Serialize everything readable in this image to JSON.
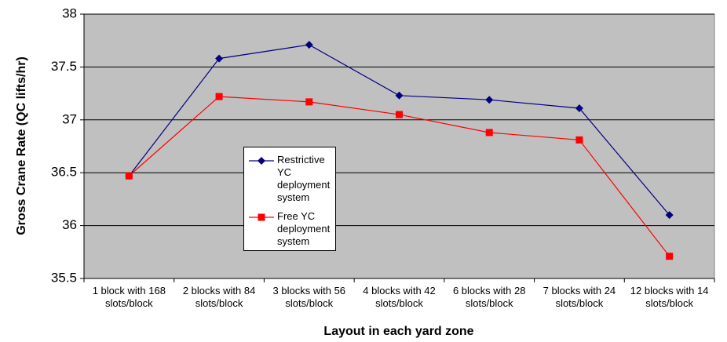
{
  "chart_data": {
    "type": "line",
    "xlabel": "Layout in each yard zone",
    "ylabel": "Gross Crane Rate (QC lifts/hr)",
    "categories": [
      "1 block with 168 slots/block",
      "2 blocks with 84 slots/block",
      "3 blocks with 56 slots/block",
      "4 blocks with 42 slots/block",
      "6 blocks with 28 slots/block",
      "7 blocks with 24 slots/block",
      "12 blocks with 14 slots/block"
    ],
    "series": [
      {
        "name": "Restrictive YC deployment system",
        "color": "#000080",
        "marker": "diamond",
        "values": [
          36.47,
          37.58,
          37.71,
          37.23,
          37.19,
          37.11,
          36.1
        ]
      },
      {
        "name": "Free YC deployment system",
        "color": "#ff0000",
        "marker": "square",
        "values": [
          36.47,
          37.22,
          37.17,
          37.05,
          36.88,
          36.81,
          35.71
        ]
      }
    ],
    "ylim": [
      35.5,
      38
    ],
    "yticks": [
      35.5,
      36,
      36.5,
      37,
      37.5,
      38
    ],
    "grid": true,
    "legend": "center-left"
  }
}
